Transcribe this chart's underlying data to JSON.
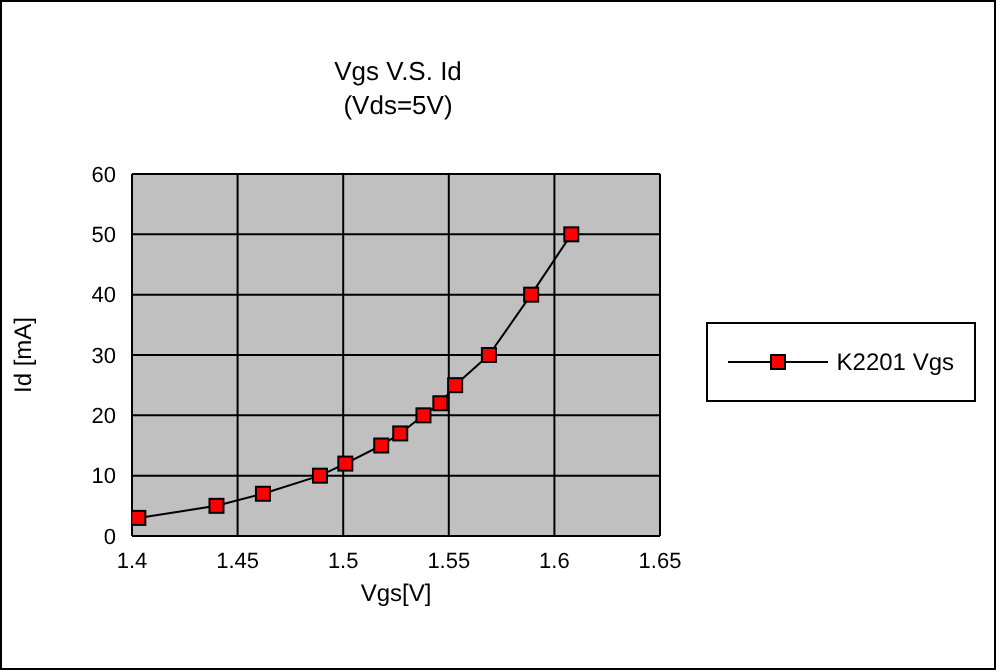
{
  "chart_data": {
    "type": "line",
    "title": "Vgs V.S. Id",
    "subtitle": "(Vds=5V)",
    "xlabel": "Vgs[V]",
    "ylabel": "Id [mA]",
    "x": [
      1.403,
      1.44,
      1.462,
      1.489,
      1.501,
      1.518,
      1.527,
      1.538,
      1.546,
      1.553,
      1.569,
      1.589,
      1.608
    ],
    "series": [
      {
        "name": "K2201 Vgs",
        "color": "#ff0000",
        "values": [
          3,
          5,
          7,
          10,
          12,
          15,
          17,
          20,
          22,
          25,
          30,
          40,
          50
        ]
      }
    ],
    "xlim": [
      1.4,
      1.65
    ],
    "xticks": [
      1.4,
      1.45,
      1.5,
      1.55,
      1.6,
      1.65
    ],
    "ylim": [
      0,
      60
    ],
    "yticks": [
      0,
      10,
      20,
      30,
      40,
      50,
      60
    ],
    "grid": true,
    "legend": "right",
    "marker": "square",
    "line_style": "solid"
  }
}
